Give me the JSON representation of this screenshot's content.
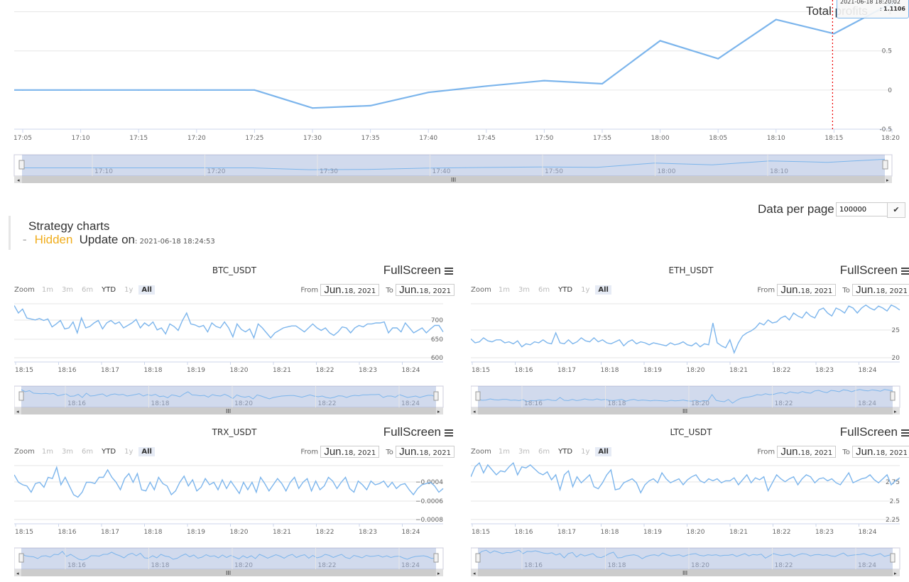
{
  "profit": {
    "title": "Total profits",
    "tooltip_time": "2021-06-18 18:20:02",
    "tooltip_value": "1.1106",
    "tooltip_prefix": ": ",
    "x_ticks": [
      "17:05",
      "17:10",
      "17:15",
      "17:20",
      "17:25",
      "17:30",
      "17:35",
      "17:40",
      "17:45",
      "17:50",
      "17:55",
      "18:00",
      "18:05",
      "18:10",
      "18:15",
      "18:20"
    ],
    "y_ticks": [
      "1",
      "0.5",
      "0",
      "-0.5"
    ],
    "navigator_ticks": [
      "17:10",
      "17:20",
      "17:30",
      "17:40",
      "17:50",
      "18:00",
      "18:10"
    ]
  },
  "controls": {
    "data_per_page_label": "Data per page",
    "data_per_page_value": "100000",
    "confirm_icon": "check-icon"
  },
  "strategy": {
    "title": "Strategy charts",
    "toggle_dash": "–",
    "hidden_label": "Hidden",
    "update_label": "Update on",
    "update_time": ": 2021-06-18 18:24:53"
  },
  "toolbar": {
    "zoom_label": "Zoom",
    "ranges": [
      "1m",
      "3m",
      "6m",
      "YTD",
      "1y",
      "All"
    ],
    "from_label": "From",
    "to_label": "To",
    "date_month": "Jun.",
    "date_rest": "18, 2021",
    "fullscreen_label": "FullScreen"
  },
  "small_charts": [
    {
      "title": "BTC_USDT",
      "y_ticks": [
        "700",
        "650",
        "600"
      ],
      "x_ticks": [
        "18:15",
        "18:16",
        "18:17",
        "18:18",
        "18:19",
        "18:20",
        "18:21",
        "18:22",
        "18:23",
        "18:24"
      ],
      "nav_ticks": [
        "18:16",
        "18:18",
        "18:20",
        "18:22",
        "18:24"
      ]
    },
    {
      "title": "ETH_USDT",
      "y_ticks": [
        "25",
        "20"
      ],
      "x_ticks": [
        "18:15",
        "18:16",
        "18:17",
        "18:18",
        "18:19",
        "18:20",
        "18:21",
        "18:22",
        "18:23",
        "18:24"
      ],
      "nav_ticks": [
        "18:16",
        "18:18",
        "18:20",
        "18:22",
        "18:24"
      ]
    },
    {
      "title": "TRX_USDT",
      "y_ticks": [
        "−0.0004",
        "−0.0006",
        "−0.0008"
      ],
      "x_ticks": [
        "18:15",
        "18:16",
        "18:17",
        "18:18",
        "18:19",
        "18:20",
        "18:21",
        "18:22",
        "18:23",
        "18:24"
      ],
      "nav_ticks": [
        "18:16",
        "18:18",
        "18:20",
        "18:22",
        "18:24"
      ]
    },
    {
      "title": "LTC_USDT",
      "y_ticks": [
        "2.75",
        "2.5",
        "2.25"
      ],
      "x_ticks": [
        "18:15",
        "18:16",
        "18:17",
        "18:18",
        "18:19",
        "18:20",
        "18:21",
        "18:22",
        "18:23",
        "18:24"
      ],
      "nav_ticks": [
        "18:16",
        "18:18",
        "18:20",
        "18:22",
        "18:24"
      ]
    }
  ],
  "chart_data": [
    {
      "type": "line",
      "title": "Total profits",
      "x": [
        "17:05",
        "17:10",
        "17:15",
        "17:20",
        "17:25",
        "17:30",
        "17:35",
        "17:40",
        "17:45",
        "17:50",
        "17:55",
        "18:00",
        "18:05",
        "18:10",
        "18:15",
        "18:20"
      ],
      "series": [
        {
          "values": [
            0,
            0,
            0,
            0,
            0,
            -0.23,
            -0.2,
            -0.03,
            0.05,
            0.12,
            0.08,
            0.63,
            0.4,
            0.9,
            0.72,
            1.1106
          ]
        }
      ],
      "ylim": [
        -0.5,
        1.1
      ],
      "color": "#7cb5ec"
    },
    {
      "type": "line",
      "title": "BTC_USDT",
      "ylim": [
        600,
        700
      ],
      "color": "#7cb5ec",
      "x_start": "18:15",
      "x_end": "18:24",
      "series": [
        {
          "values": [
            705,
            690,
            698,
            680,
            678,
            676,
            679,
            675,
            678,
            662,
            668,
            675,
            658,
            660,
            672,
            650,
            680,
            660,
            663,
            670,
            675,
            658,
            670,
            675,
            668,
            672,
            660,
            665,
            670,
            677,
            660,
            670,
            664,
            672,
            656,
            660,
            648,
            668,
            663,
            655,
            675,
            690,
            668,
            666,
            662,
            665,
            652,
            670,
            663,
            660,
            672,
            660,
            642,
            668,
            657,
            652,
            658,
            640,
            668,
            660,
            650,
            640,
            650,
            655,
            660,
            662,
            664,
            664,
            658,
            652,
            660,
            668,
            660,
            655,
            660,
            650,
            645,
            652,
            662,
            660,
            650,
            660,
            665,
            662,
            668,
            668,
            670,
            670,
            672,
            650,
            660,
            660,
            652,
            670,
            660,
            650,
            655,
            660,
            650,
            658,
            665,
            665,
            652
          ]
        }
      ]
    },
    {
      "type": "line",
      "title": "ETH_USDT",
      "ylim": [
        20,
        25
      ],
      "color": "#7cb5ec",
      "x_start": "18:15",
      "x_end": "18:24",
      "series": [
        {
          "values": [
            21.9,
            21.5,
            21.6,
            22.0,
            21.7,
            21.6,
            21.8,
            21.8,
            21.5,
            21.6,
            21.4,
            21.7,
            21.1,
            21.4,
            21.3,
            21.6,
            21.5,
            21.8,
            21.5,
            21.4,
            22.5,
            21.5,
            21.4,
            21.8,
            21.4,
            21.6,
            22.0,
            21.7,
            21.6,
            22.0,
            21.6,
            21.8,
            21.5,
            21.4,
            21.6,
            21.8,
            21.2,
            21.6,
            21.8,
            21.4,
            21.6,
            21.5,
            21.3,
            21.5,
            21.4,
            21.3,
            21.2,
            21.5,
            21.3,
            21.4,
            21.6,
            21.3,
            21.2,
            21.5,
            21.1,
            21.4,
            21.3,
            23.5,
            21.5,
            21.2,
            21.0,
            21.8,
            20.5,
            21.5,
            22.2,
            22.5,
            22.7,
            23.0,
            23.5,
            23.3,
            23.8,
            23.5,
            23.6,
            24.0,
            24.2,
            23.8,
            24.5,
            24.2,
            24.0,
            24.6,
            24.2,
            24.0,
            24.8,
            25.0,
            24.5,
            24.2,
            25.0,
            24.8,
            24.5,
            25.2,
            25.0,
            24.5,
            25.0,
            25.3,
            25.0,
            24.8,
            25.2,
            25.0,
            24.7,
            25.3,
            25.1,
            24.8
          ]
        }
      ]
    },
    {
      "type": "line",
      "title": "TRX_USDT",
      "ylim": [
        -0.0008,
        -0.0004
      ],
      "color": "#7cb5ec",
      "x_start": "18:15",
      "x_end": "18:24",
      "series": [
        {
          "values": [
            -0.00044,
            -0.0005,
            -0.00052,
            -0.00053,
            -0.00058,
            -0.00051,
            -0.0005,
            -0.00054,
            -0.00046,
            -0.00047,
            -0.00038,
            -0.00052,
            -0.00046,
            -0.00053,
            -0.0006,
            -0.00062,
            -0.00058,
            -0.0005,
            -0.0005,
            -0.00051,
            -0.00046,
            -0.00046,
            -0.0004,
            -0.00046,
            -0.0005,
            -0.00056,
            -0.00047,
            -0.00043,
            -0.0005,
            -0.00043,
            -0.00056,
            -0.00057,
            -0.0005,
            -0.00056,
            -0.00046,
            -0.00051,
            -0.00053,
            -0.0006,
            -0.00057,
            -0.0005,
            -0.00045,
            -0.00053,
            -0.00048,
            -0.00057,
            -0.00054,
            -0.00047,
            -0.00052,
            -0.0005,
            -0.00056,
            -0.00048,
            -0.00055,
            -0.00049,
            -0.00054,
            -0.00059,
            -0.0005,
            -0.00056,
            -0.0005,
            -0.00058,
            -0.00046,
            -0.00051,
            -0.00057,
            -0.00052,
            -0.00047,
            -0.00051,
            -0.00057,
            -0.0005,
            -0.00046,
            -0.00055,
            -0.0005,
            -0.00047,
            -0.00057,
            -0.00049,
            -0.00056,
            -0.00053,
            -0.00046,
            -0.00049,
            -0.00055,
            -0.0005,
            -0.00046,
            -0.00055,
            -0.00058,
            -0.00049,
            -0.00052,
            -0.00056,
            -0.00049,
            -0.00052,
            -0.00051,
            -0.00049,
            -0.00054,
            -0.0005,
            -0.00055,
            -0.00052,
            -0.00051,
            -0.00056,
            -0.0006,
            -0.00055,
            -0.00052,
            -0.00051,
            -0.0005,
            -0.00053,
            -0.00058,
            -0.00055
          ]
        }
      ]
    },
    {
      "type": "line",
      "title": "LTC_USDT",
      "ylim": [
        2.25,
        2.75
      ],
      "color": "#7cb5ec",
      "x_start": "18:15",
      "x_end": "18:24",
      "series": [
        {
          "values": [
            2.68,
            2.78,
            2.82,
            2.72,
            2.8,
            2.75,
            2.7,
            2.74,
            2.73,
            2.78,
            2.82,
            2.7,
            2.78,
            2.77,
            2.8,
            2.76,
            2.72,
            2.7,
            2.73,
            2.65,
            2.7,
            2.55,
            2.7,
            2.74,
            2.58,
            2.68,
            2.62,
            2.66,
            2.7,
            2.58,
            2.56,
            2.62,
            2.7,
            2.75,
            2.55,
            2.56,
            2.62,
            2.64,
            2.66,
            2.62,
            2.52,
            2.6,
            2.64,
            2.66,
            2.62,
            2.72,
            2.66,
            2.62,
            2.64,
            2.66,
            2.6,
            2.65,
            2.68,
            2.7,
            2.64,
            2.62,
            2.66,
            2.64,
            2.66,
            2.62,
            2.64,
            2.64,
            2.67,
            2.6,
            2.65,
            2.7,
            2.62,
            2.67,
            2.65,
            2.68,
            2.54,
            2.62,
            2.7,
            2.66,
            2.63,
            2.66,
            2.68,
            2.6,
            2.66,
            2.7,
            2.68,
            2.62,
            2.66,
            2.67,
            2.64,
            2.66,
            2.62,
            2.6,
            2.66,
            2.72,
            2.62,
            2.64,
            2.66,
            2.67,
            2.7,
            2.65,
            2.62,
            2.66,
            2.7,
            2.6,
            2.64,
            2.67
          ]
        }
      ]
    }
  ]
}
